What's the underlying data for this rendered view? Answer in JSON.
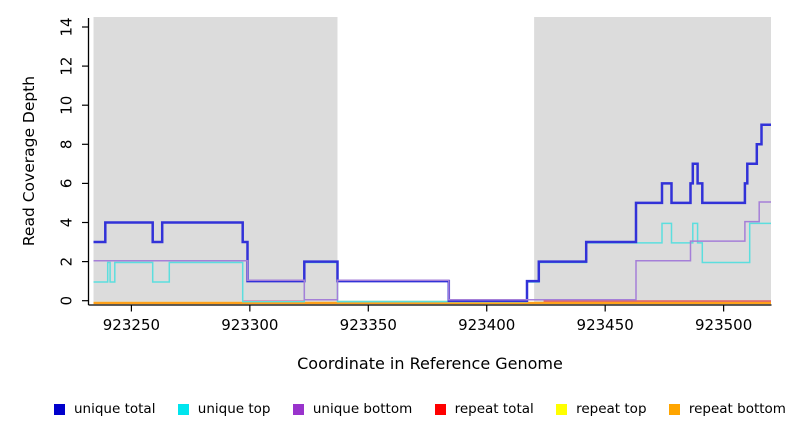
{
  "figure": {
    "x_axis_title": "Coordinate in Reference Genome",
    "y_axis_title": "Read Coverage Depth"
  },
  "chart_data": {
    "type": "line",
    "subtype": "step",
    "title": "",
    "xlabel": "Coordinate in Reference Genome",
    "ylabel": "Read Coverage Depth",
    "xlim": [
      923234,
      923520
    ],
    "ylim": [
      0,
      14
    ],
    "x_ticks": [
      923250,
      923300,
      923350,
      923400,
      923450,
      923500
    ],
    "y_ticks": [
      0,
      2,
      4,
      6,
      8,
      10,
      12,
      14
    ],
    "grid": false,
    "background": "#ffffff",
    "shaded_region_color": "#DCDCDC",
    "shaded_regions": [
      {
        "x0": 923234,
        "x1": 923337
      },
      {
        "x0": 923420,
        "x1": 923520
      }
    ],
    "series": [
      {
        "name": "repeat top",
        "color": "#FFE000",
        "width": 2.0,
        "offset": 2.2,
        "points": [
          [
            923234,
            0
          ],
          [
            923520,
            0
          ]
        ]
      },
      {
        "name": "repeat bottom",
        "color": "#FFA11B",
        "width": 2.3,
        "offset": 2.3,
        "points": [
          [
            923234,
            0
          ],
          [
            923520,
            0
          ]
        ]
      },
      {
        "name": "repeat total",
        "color": "#E06060",
        "width": 1.6,
        "offset": 0.4,
        "points": [
          [
            923424,
            0
          ],
          [
            923520,
            0
          ]
        ]
      },
      {
        "name": "unique top",
        "color": "#5CDEDE",
        "width": 1.5,
        "offset": 0.9,
        "points": [
          [
            923234,
            1
          ],
          [
            923240,
            2
          ],
          [
            923241,
            1
          ],
          [
            923243,
            2
          ],
          [
            923259,
            1
          ],
          [
            923266,
            2
          ],
          [
            923297,
            0
          ],
          [
            923323,
            2
          ],
          [
            923337,
            0
          ],
          [
            923417,
            1
          ],
          [
            923422,
            2
          ],
          [
            923442,
            3
          ],
          [
            923474,
            4
          ],
          [
            923478,
            3
          ],
          [
            923487,
            4
          ],
          [
            923489,
            3
          ],
          [
            923491,
            2
          ],
          [
            923511,
            4
          ],
          [
            923520,
            4
          ]
        ]
      },
      {
        "name": "unique total",
        "color": "#3232D8",
        "width": 2.5,
        "offset": 0,
        "points": [
          [
            923234,
            3
          ],
          [
            923239,
            4
          ],
          [
            923259,
            3
          ],
          [
            923263,
            4
          ],
          [
            923297,
            3
          ],
          [
            923299,
            1
          ],
          [
            923323,
            2
          ],
          [
            923337,
            1
          ],
          [
            923384,
            0
          ],
          [
            923417,
            1
          ],
          [
            923422,
            2
          ],
          [
            923442,
            3
          ],
          [
            923463,
            5
          ],
          [
            923474,
            6
          ],
          [
            923478,
            5
          ],
          [
            923486,
            6
          ],
          [
            923487,
            7
          ],
          [
            923489,
            6
          ],
          [
            923491,
            5
          ],
          [
            923509,
            6
          ],
          [
            923510,
            7
          ],
          [
            923514,
            8
          ],
          [
            923516,
            9
          ],
          [
            923520,
            9
          ]
        ]
      },
      {
        "name": "unique bottom",
        "color": "#A57FD8",
        "width": 1.5,
        "offset": -0.9,
        "points": [
          [
            923234,
            2
          ],
          [
            923299,
            1
          ],
          [
            923323,
            0
          ],
          [
            923337,
            1
          ],
          [
            923384,
            0
          ],
          [
            923463,
            2
          ],
          [
            923486,
            3
          ],
          [
            923509,
            4
          ],
          [
            923515,
            5
          ],
          [
            923520,
            5
          ]
        ]
      }
    ],
    "zero_overlays": [
      {
        "color": "#E873AE",
        "x0": 923297,
        "x1": 923323,
        "dy": 0.4
      },
      {
        "color": "#8FD98F",
        "x0": 923337,
        "x1": 923384,
        "dy": 0.8
      }
    ],
    "legend": [
      {
        "label": "unique total",
        "color": "#0000CC"
      },
      {
        "label": "unique top",
        "color": "#00E5EE"
      },
      {
        "label": "unique bottom",
        "color": "#9933CC"
      },
      {
        "label": "repeat total",
        "color": "#FF0000"
      },
      {
        "label": "repeat top",
        "color": "#FFFF00"
      },
      {
        "label": "repeat bottom",
        "color": "#FFA500"
      }
    ]
  }
}
